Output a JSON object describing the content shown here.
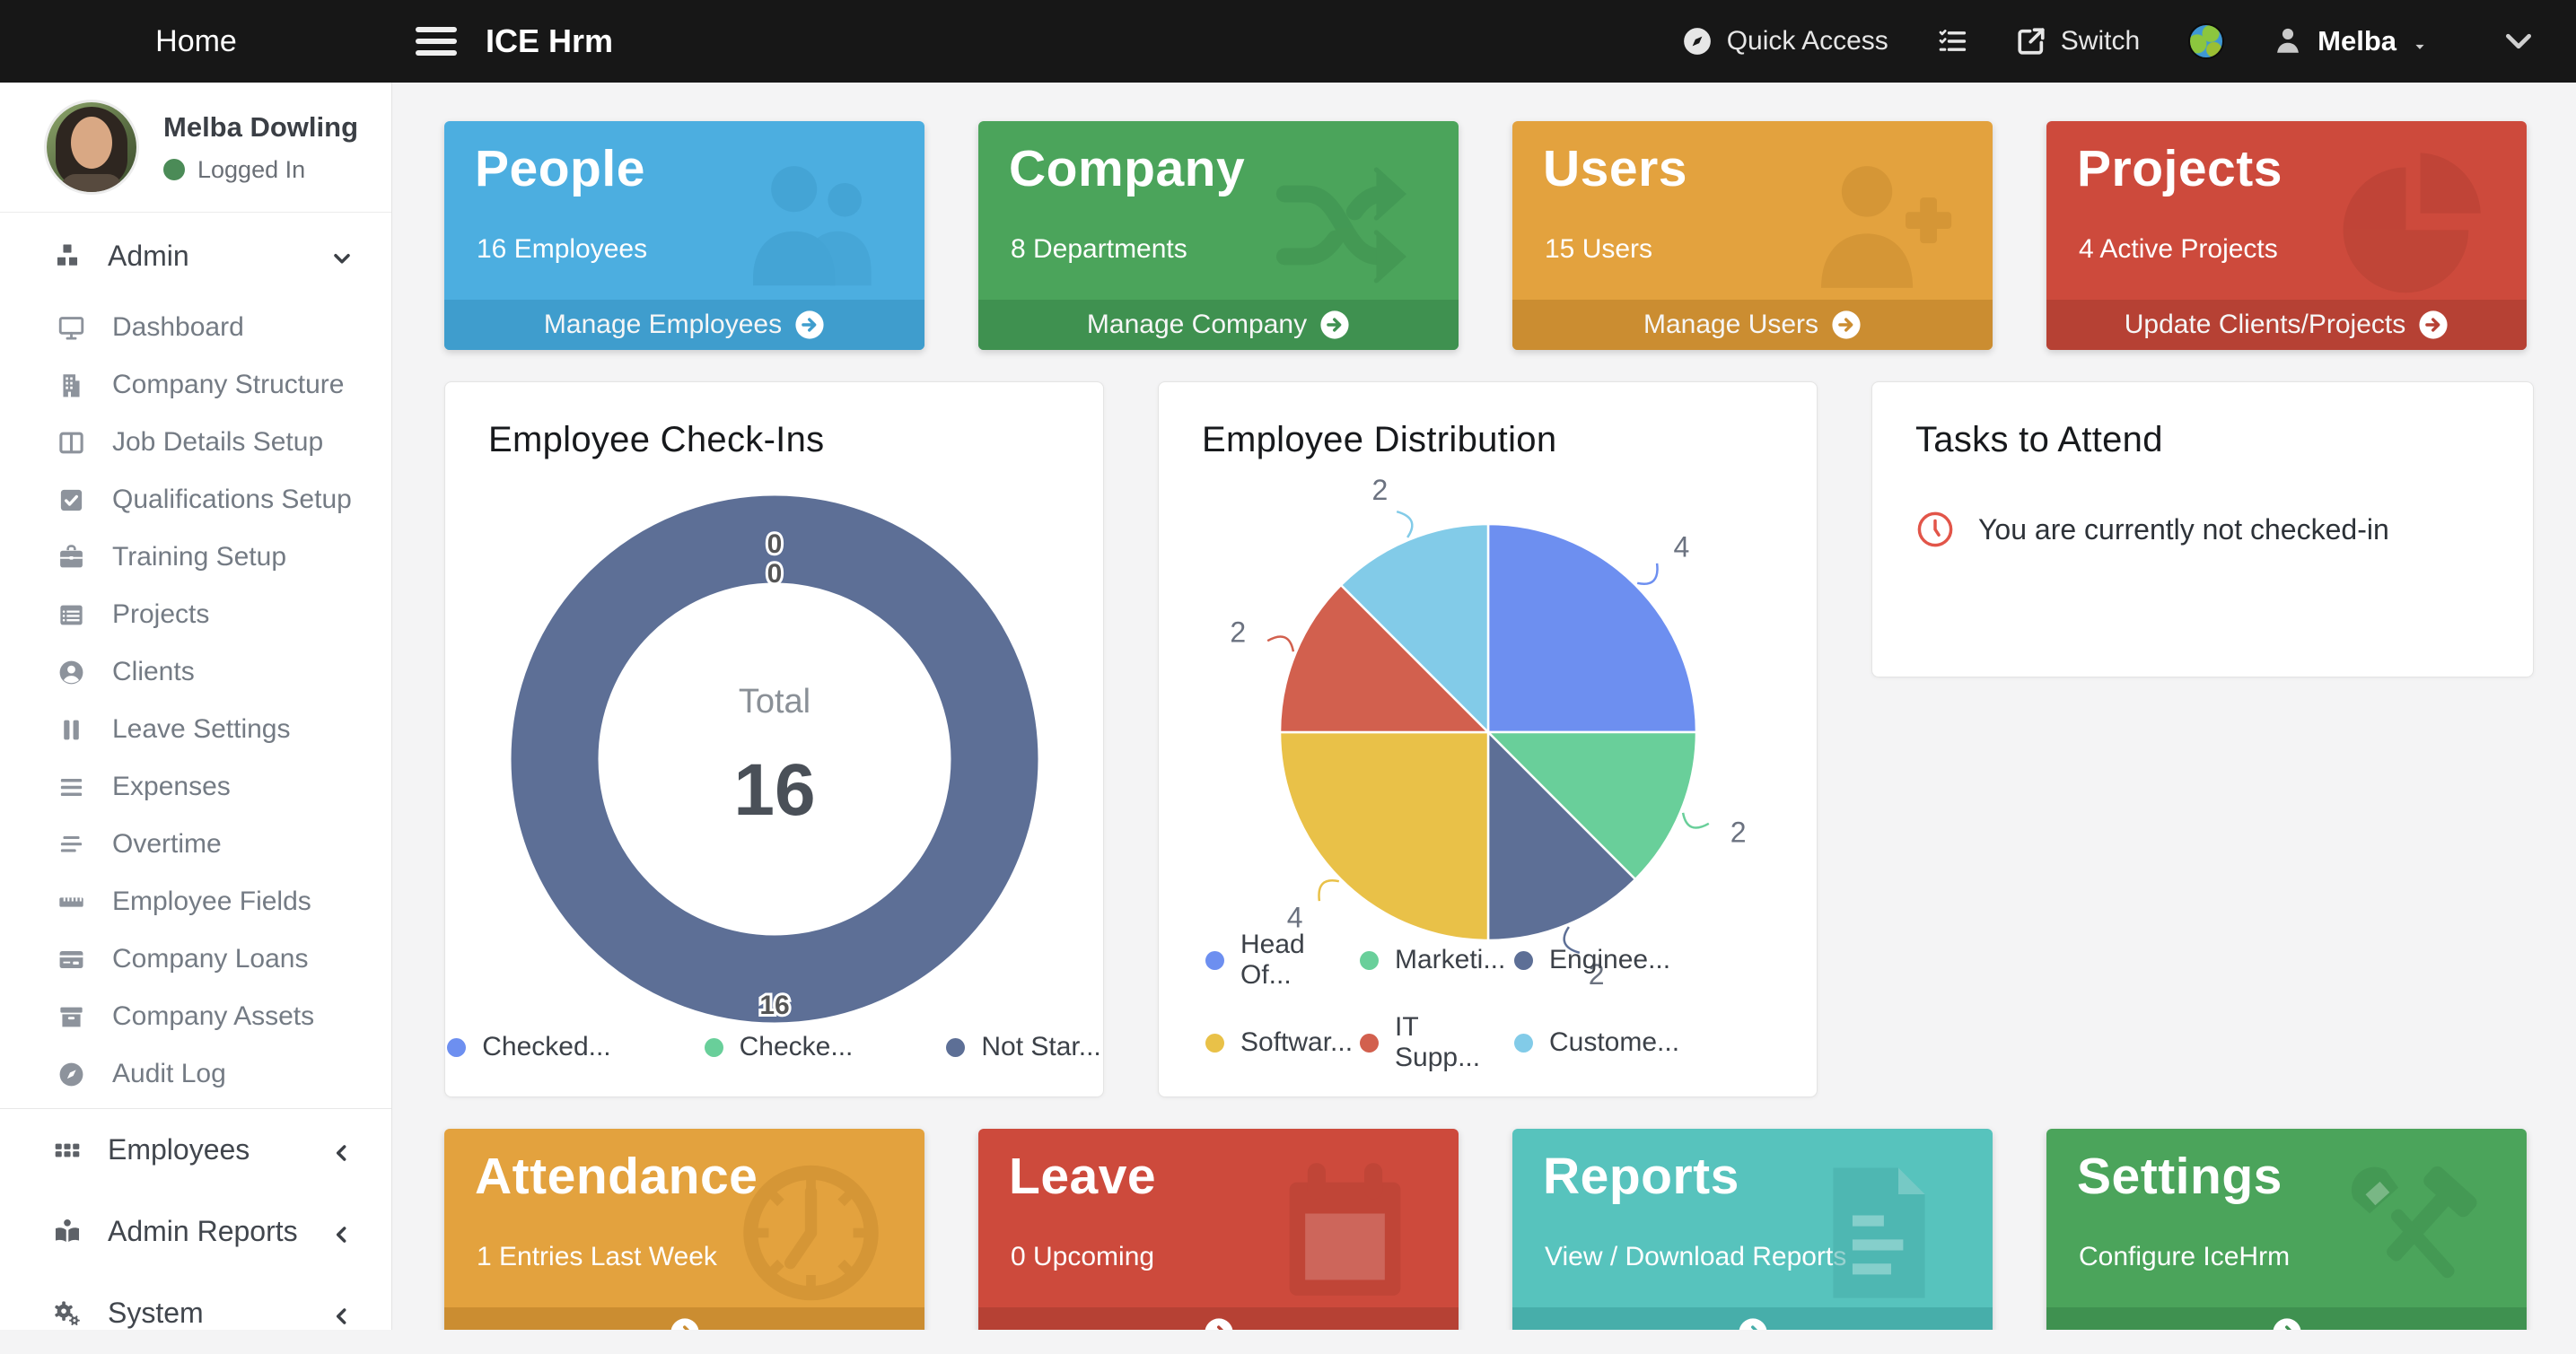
{
  "navbar": {
    "home": "Home",
    "app_title": "ICE Hrm",
    "quick_access": "Quick Access",
    "switch": "Switch",
    "user": "Melba"
  },
  "sidebar": {
    "profile": {
      "name": "Melba Dowling",
      "status": "Logged In"
    },
    "admin": {
      "label": "Admin",
      "icon": "cubes-icon"
    },
    "admin_items": [
      {
        "label": "Dashboard",
        "icon": "monitor-icon"
      },
      {
        "label": "Company Structure",
        "icon": "building-icon"
      },
      {
        "label": "Job Details Setup",
        "icon": "columns-icon"
      },
      {
        "label": "Qualifications Setup",
        "icon": "check-square-icon"
      },
      {
        "label": "Training Setup",
        "icon": "briefcase-icon"
      },
      {
        "label": "Projects",
        "icon": "table-list-icon"
      },
      {
        "label": "Clients",
        "icon": "user-circle-icon"
      },
      {
        "label": "Leave Settings",
        "icon": "pause-icon"
      },
      {
        "label": "Expenses",
        "icon": "lines-icon"
      },
      {
        "label": "Overtime",
        "icon": "align-lines-icon"
      },
      {
        "label": "Employee Fields",
        "icon": "ruler-icon"
      },
      {
        "label": "Company Loans",
        "icon": "credit-card-icon"
      },
      {
        "label": "Company Assets",
        "icon": "archive-icon"
      },
      {
        "label": "Audit Log",
        "icon": "compass-icon"
      }
    ],
    "sections": [
      {
        "label": "Employees",
        "icon": "grid-icon"
      },
      {
        "label": "Admin Reports",
        "icon": "book-reader-icon"
      },
      {
        "label": "System",
        "icon": "gears-icon"
      }
    ]
  },
  "tiles_top": [
    {
      "title": "People",
      "subtitle": "16 Employees",
      "footer": "Manage Employees",
      "icon": "people-group-icon",
      "bg": "#4caee0",
      "footer_bg": "#3f9dcd"
    },
    {
      "title": "Company",
      "subtitle": "8 Departments",
      "footer": "Manage Company",
      "icon": "shuffle-icon",
      "bg": "#4ba45b",
      "footer_bg": "#3f9150"
    },
    {
      "title": "Users",
      "subtitle": "15 Users",
      "footer": "Manage Users",
      "icon": "user-plus-icon",
      "bg": "#e3a23e",
      "footer_bg": "#cb8d31"
    },
    {
      "title": "Projects",
      "subtitle": "4 Active Projects",
      "footer": "Update Clients/Projects",
      "icon": "pie-chart-icon",
      "bg": "#cd4a3c",
      "footer_bg": "#b64134"
    }
  ],
  "tiles_bottom": [
    {
      "title": "Attendance",
      "subtitle": "1 Entries Last Week",
      "icon": "clock-icon",
      "bg": "#e3a23e",
      "footer_bg": "#cb8d31"
    },
    {
      "title": "Leave",
      "subtitle": "0 Upcoming",
      "icon": "calendar-icon",
      "bg": "#cd4a3c",
      "footer_bg": "#b64134"
    },
    {
      "title": "Reports",
      "subtitle": "View / Download Reports",
      "icon": "file-lines-icon",
      "bg": "#57c3bd",
      "footer_bg": "#47aeaa"
    },
    {
      "title": "Settings",
      "subtitle": "Configure IceHrm",
      "icon": "tools-icon",
      "bg": "#4ba45b",
      "footer_bg": "#3f9150"
    }
  ],
  "tasks": {
    "title": "Tasks to Attend",
    "message": "You are currently not checked-in",
    "clock_color": "#e25549"
  },
  "chart_data": [
    {
      "type": "donut",
      "title": "Employee Check-Ins",
      "series": [
        {
          "name": "Checked...",
          "value": 0,
          "color": "#6d8ff0"
        },
        {
          "name": "Checke...",
          "value": 0,
          "color": "#69cf9a"
        },
        {
          "name": "Not Star...",
          "value": 16,
          "color": "#5d6f96"
        }
      ],
      "total": 16,
      "center_label": "Total",
      "center_value": "16",
      "callout_values": [
        "0",
        "0",
        "16"
      ],
      "legend_position": "bottom"
    },
    {
      "type": "pie",
      "title": "Employee Distribution",
      "slices": [
        {
          "name": "Head Of...",
          "value": 4,
          "color": "#6d8ff0"
        },
        {
          "name": "Marketi...",
          "value": 2,
          "color": "#69cf9a"
        },
        {
          "name": "Enginee...",
          "value": 2,
          "color": "#5d6f96"
        },
        {
          "name": "Softwar...",
          "value": 4,
          "color": "#e9c148"
        },
        {
          "name": "IT Supp...",
          "value": 2,
          "color": "#d2604e"
        },
        {
          "name": "Custome...",
          "value": 2,
          "color": "#82cbe8"
        }
      ],
      "total": 16,
      "start_angle": "top-clockwise",
      "legend_position": "bottom"
    }
  ]
}
